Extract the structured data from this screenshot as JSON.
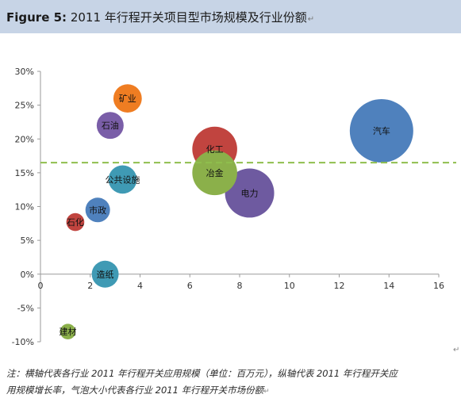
{
  "figure_label": "Figure 5:",
  "figure_title": "2011 年行程开关项目型市场规模及行业份额",
  "note_line1": "注：横轴代表各行业 2011 年行程开关应用规模（单位：百万元），纵轴代表 2011 年行程开关应",
  "note_line2": "用规模增长率，气泡大小代表各行业 2011 年行程开关市场份额",
  "chart_data": {
    "type": "scatter",
    "subtype": "bubble",
    "title": "",
    "xlabel": "",
    "ylabel": "",
    "xlim": [
      0,
      16
    ],
    "ylim": [
      -10,
      30
    ],
    "x_ticks": [
      0,
      2,
      4,
      6,
      8,
      10,
      12,
      14,
      16
    ],
    "y_ticks": [
      -10,
      -5,
      0,
      5,
      10,
      15,
      20,
      25,
      30
    ],
    "x_tick_labels": [
      "0",
      "2",
      "4",
      "6",
      "8",
      "10",
      "12",
      "14",
      "16"
    ],
    "y_tick_labels": [
      "-10%",
      "-5%",
      "0%",
      "5%",
      "10%",
      "15%",
      "20%",
      "25%",
      "30%"
    ],
    "grid": false,
    "legend": "none",
    "reference_line": {
      "axis": "y",
      "value": 16.5,
      "style": "dashed",
      "color": "#8fbf4d"
    },
    "points": [
      {
        "label": "矿业",
        "x": 3.5,
        "y": 26,
        "size": 2.0,
        "color": "#ef7d22"
      },
      {
        "label": "石油",
        "x": 2.8,
        "y": 22,
        "size": 1.8,
        "color": "#7a5ea8"
      },
      {
        "label": "化工",
        "x": 7.0,
        "y": 18.5,
        "size": 5.0,
        "color": "#c1443f"
      },
      {
        "label": "冶金",
        "x": 7.0,
        "y": 15,
        "size": 5.0,
        "color": "#8bb04a"
      },
      {
        "label": "汽车",
        "x": 13.7,
        "y": 21.2,
        "size": 10.0,
        "color": "#4f81bd"
      },
      {
        "label": "公共设施",
        "x": 3.3,
        "y": 14,
        "size": 2.0,
        "color": "#3f9ab4"
      },
      {
        "label": "电力",
        "x": 8.4,
        "y": 12,
        "size": 6.0,
        "color": "#6e5aa0"
      },
      {
        "label": "市政",
        "x": 2.3,
        "y": 9.5,
        "size": 1.5,
        "color": "#4f81bd"
      },
      {
        "label": "石化",
        "x": 1.4,
        "y": 7.7,
        "size": 0.8,
        "color": "#c1443f"
      },
      {
        "label": "造纸",
        "x": 2.6,
        "y": 0,
        "size": 1.8,
        "color": "#3f9ab4"
      },
      {
        "label": "建材",
        "x": 1.1,
        "y": -8.5,
        "size": 0.6,
        "color": "#8bb04a"
      }
    ]
  }
}
